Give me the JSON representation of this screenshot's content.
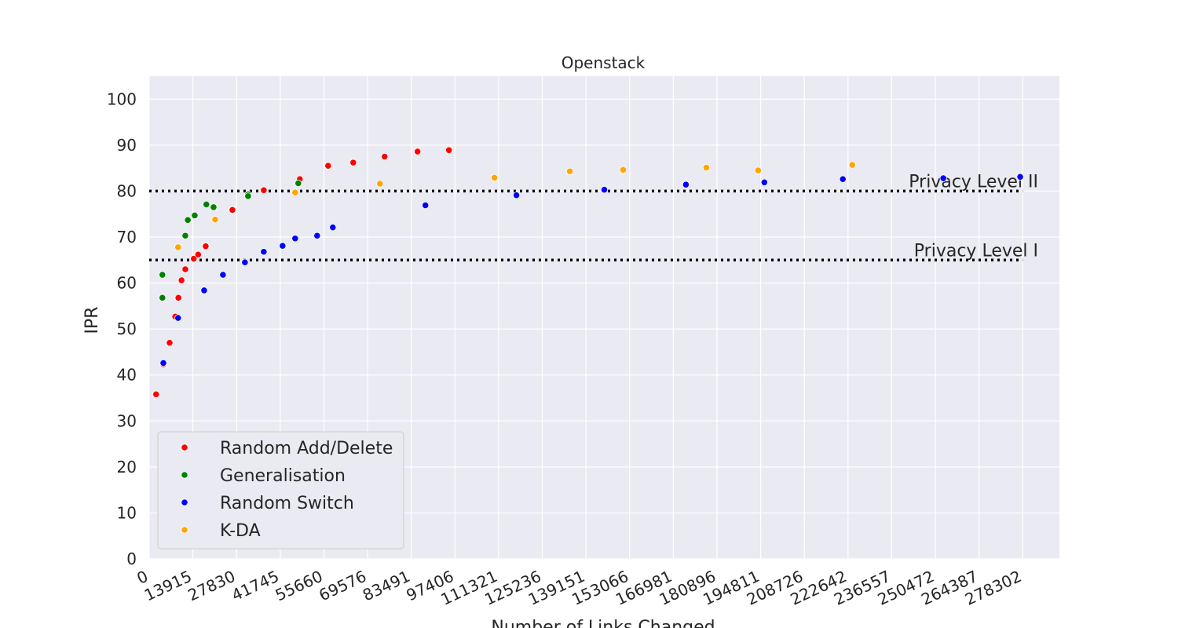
{
  "chart_data": {
    "type": "scatter",
    "title": "Openstack",
    "xlabel": "Number of Links Changed",
    "ylabel": "IPR",
    "xlim": [
      0,
      290000
    ],
    "ylim": [
      0,
      105
    ],
    "x_ticks": [
      0,
      13915,
      27830,
      41745,
      55660,
      69576,
      83491,
      97406,
      111321,
      125236,
      139151,
      153066,
      166981,
      180896,
      194811,
      208726,
      222642,
      236557,
      250472,
      264387,
      278302
    ],
    "y_ticks": [
      0,
      10,
      20,
      30,
      40,
      50,
      60,
      70,
      80,
      90,
      100
    ],
    "grid": true,
    "legend_position": "lower-left",
    "series": [
      {
        "name": "Random Add/Delete",
        "color": "#ff0000",
        "points": [
          {
            "x": 2200,
            "y": 35.8
          },
          {
            "x": 4500,
            "y": 42.3
          },
          {
            "x": 6500,
            "y": 47
          },
          {
            "x": 8300,
            "y": 52.7
          },
          {
            "x": 9300,
            "y": 56.8
          },
          {
            "x": 10300,
            "y": 60.6
          },
          {
            "x": 11500,
            "y": 63
          },
          {
            "x": 14200,
            "y": 65.3
          },
          {
            "x": 15600,
            "y": 66.2
          },
          {
            "x": 18000,
            "y": 68
          },
          {
            "x": 26500,
            "y": 75.9
          },
          {
            "x": 36500,
            "y": 80.2
          },
          {
            "x": 48000,
            "y": 82.6
          },
          {
            "x": 57000,
            "y": 85.5
          },
          {
            "x": 65000,
            "y": 86.2
          },
          {
            "x": 75000,
            "y": 87.5
          },
          {
            "x": 85500,
            "y": 88.6
          },
          {
            "x": 95500,
            "y": 88.9
          }
        ]
      },
      {
        "name": "Generalisation",
        "color": "#008000",
        "points": [
          {
            "x": 4200,
            "y": 56.8
          },
          {
            "x": 4200,
            "y": 61.8
          },
          {
            "x": 11500,
            "y": 70.3
          },
          {
            "x": 12300,
            "y": 73.7
          },
          {
            "x": 14500,
            "y": 74.7
          },
          {
            "x": 18200,
            "y": 77.1
          },
          {
            "x": 20500,
            "y": 76.5
          },
          {
            "x": 31500,
            "y": 79.3
          },
          {
            "x": 31500,
            "y": 78.9
          },
          {
            "x": 47500,
            "y": 81.7
          }
        ]
      },
      {
        "name": "Random Switch",
        "color": "#0000ff",
        "points": [
          {
            "x": 4500,
            "y": 42.6
          },
          {
            "x": 9200,
            "y": 52.4
          },
          {
            "x": 17500,
            "y": 58.4
          },
          {
            "x": 23500,
            "y": 61.8
          },
          {
            "x": 30500,
            "y": 64.5
          },
          {
            "x": 36500,
            "y": 66.8
          },
          {
            "x": 42500,
            "y": 68.1
          },
          {
            "x": 46500,
            "y": 69.7
          },
          {
            "x": 53500,
            "y": 70.3
          },
          {
            "x": 58500,
            "y": 72.1
          },
          {
            "x": 88000,
            "y": 76.9
          },
          {
            "x": 117000,
            "y": 79.1
          },
          {
            "x": 145000,
            "y": 80.3
          },
          {
            "x": 171000,
            "y": 81.4
          },
          {
            "x": 196000,
            "y": 81.9
          },
          {
            "x": 221000,
            "y": 82.6
          },
          {
            "x": 253000,
            "y": 82.8
          },
          {
            "x": 277500,
            "y": 83.1
          }
        ]
      },
      {
        "name": "K-DA",
        "color": "#ffa500",
        "points": [
          {
            "x": 9200,
            "y": 67.8
          },
          {
            "x": 21000,
            "y": 73.8
          },
          {
            "x": 46500,
            "y": 79.7
          },
          {
            "x": 73500,
            "y": 81.6
          },
          {
            "x": 110000,
            "y": 82.9
          },
          {
            "x": 134000,
            "y": 84.3
          },
          {
            "x": 151000,
            "y": 84.6
          },
          {
            "x": 177500,
            "y": 85.1
          },
          {
            "x": 194000,
            "y": 84.5
          },
          {
            "x": 224000,
            "y": 85.7
          }
        ]
      }
    ],
    "reference_lines": [
      {
        "label": "Privacy Level II",
        "y": 80,
        "x_start": 0,
        "x_end": 278302
      },
      {
        "label": "Privacy Level I",
        "y": 65,
        "x_start": 0,
        "x_end": 278302
      }
    ]
  }
}
